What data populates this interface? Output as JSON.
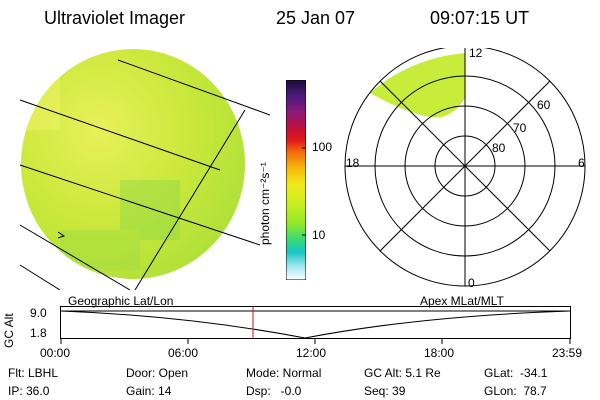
{
  "header": {
    "instrument": "Ultraviolet Imager",
    "date": "25 Jan 07",
    "time": "09:07:15 UT"
  },
  "colorbar": {
    "label": "photon cm⁻²s⁻¹",
    "ticks": [
      "100",
      "10"
    ],
    "colors": [
      "#1b0d3a",
      "#4a1b7a",
      "#8a1a7a",
      "#b0103a",
      "#d91515",
      "#f26b0f",
      "#f7b70a",
      "#f0e81a",
      "#c8ef20",
      "#8fe82a",
      "#38d878",
      "#18c6c6",
      "#6fd8e8",
      "#ffffff"
    ]
  },
  "polar_labels": {
    "top": "12",
    "bottom": "0",
    "left": "18",
    "right": "6",
    "rings": [
      "60",
      "70",
      "80"
    ]
  },
  "timeline": {
    "left_title": "Geographic Lat/Lon",
    "right_title": "Apex MLat/MLT",
    "axis_label": "GC Alt",
    "y_top": "9.0",
    "y_bottom": "1.8",
    "x_ticks": [
      "00:00",
      "06:00",
      "12:00",
      "18:00",
      "23:59"
    ]
  },
  "status": {
    "flt": "Flt: LBHL",
    "ip": "IP: 36.0",
    "door": "Door: Open",
    "gain": "Gain: 14",
    "mode": "Mode: Normal",
    "dsp": "Dsp:   -0.0",
    "gcalt": "GC Alt: 5.1 Re",
    "seq": "Seq: 39",
    "glat": "GLat:  -34.1",
    "glon": "GLon:  78.7"
  }
}
